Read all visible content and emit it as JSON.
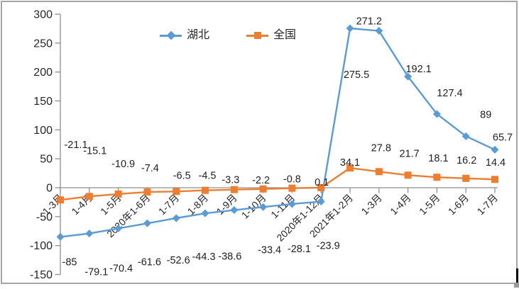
{
  "chart_data": {
    "type": "line",
    "title": "",
    "categories": [
      "1-3月",
      "1-4月",
      "1-5月",
      "2020年1-6月",
      "1-7月",
      "1-8月",
      "1-9月",
      "1-10月",
      "1-11月",
      "2020年1-12月",
      "2021年1-2月",
      "1-3月",
      "1-4月",
      "1-5月",
      "1-6月",
      "1-7月"
    ],
    "series": [
      {
        "name": "湖北",
        "color": "#5B9BD5",
        "marker": "diamond",
        "values": [
          -85,
          -79.1,
          -70.4,
          -61.6,
          -52.6,
          -44.3,
          -38.6,
          -33.4,
          -28.1,
          -23.9,
          275.5,
          271.2,
          192.1,
          127.4,
          89,
          65.7
        ]
      },
      {
        "name": "全国",
        "color": "#ED7D31",
        "marker": "square",
        "values": [
          -21.1,
          -15.1,
          -10.9,
          -7.4,
          -6.5,
          -4.5,
          -3.3,
          -2.2,
          -0.8,
          0.1,
          34.1,
          27.8,
          21.7,
          18.1,
          16.2,
          14.4
        ]
      }
    ],
    "y_ticks": [
      300,
      250,
      200,
      150,
      100,
      50,
      0,
      -50,
      -100,
      -150
    ],
    "ylim": [
      -150,
      300
    ],
    "grid": "off",
    "data_labels": "on",
    "legend_position": "top-center",
    "x_label_rotation_deg": 45
  }
}
